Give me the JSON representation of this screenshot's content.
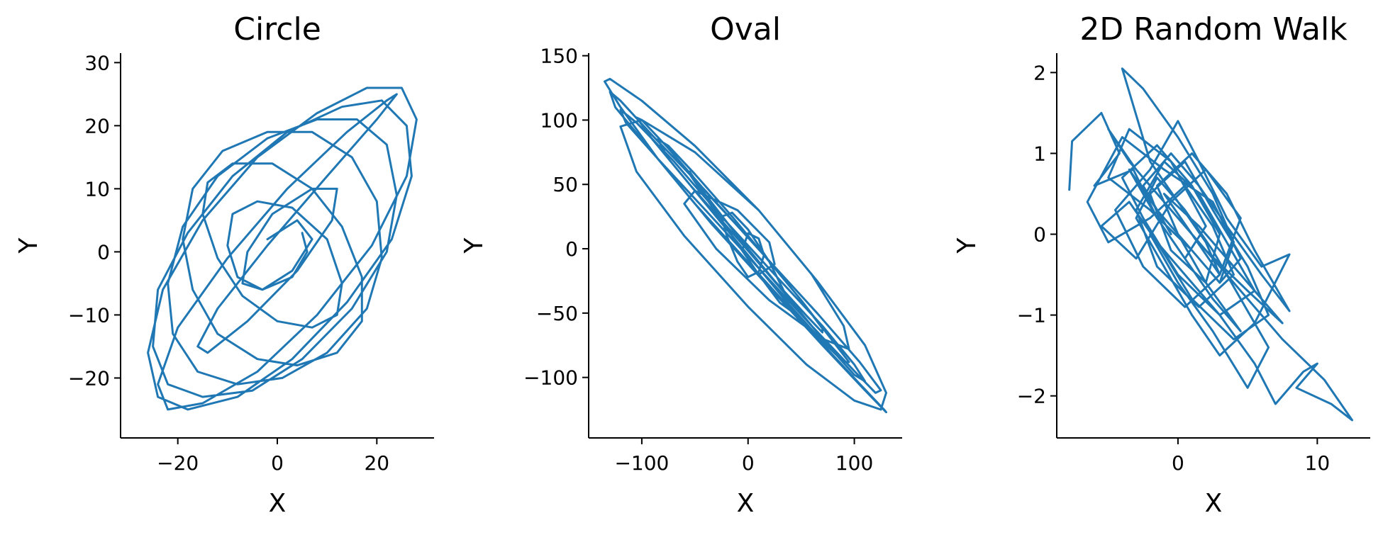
{
  "colors": {
    "series": "#1f77b4",
    "axis": "#000000",
    "background": "#ffffff"
  },
  "chart_data": [
    {
      "type": "line",
      "title": "Circle",
      "xlabel": "X",
      "ylabel": "Y",
      "xlim": [
        -31.5,
        31.5
      ],
      "ylim": [
        -29.5,
        31.5
      ],
      "xticks": [
        -20,
        0,
        20
      ],
      "yticks": [
        -20,
        -10,
        0,
        10,
        20,
        30
      ],
      "grid": false,
      "legend": "none",
      "trajectory": "noisy spiral expanding outward from origin",
      "series": [
        {
          "x": [
            -2,
            4,
            7,
            3,
            -3,
            -8,
            -10,
            -9,
            -4,
            3,
            10,
            13,
            12,
            7,
            0,
            -7,
            -12,
            -15,
            -14,
            -9,
            -1,
            7,
            13,
            17,
            17,
            12,
            4,
            -4,
            -12,
            -17,
            -19,
            -17,
            -11,
            -2,
            7,
            15,
            20,
            21,
            18,
            10,
            1,
            -8,
            -16,
            -21,
            -22,
            -19,
            -12,
            -2,
            8,
            16,
            22,
            24,
            22,
            15,
            5,
            -5,
            -15,
            -22,
            -25,
            -24,
            -18,
            -9,
            2,
            13,
            21,
            26,
            27,
            23,
            14,
            3,
            -8,
            -18,
            -24,
            -26,
            -23,
            -15,
            -4,
            8,
            18,
            25,
            28,
            26,
            19,
            8,
            -4,
            -15,
            -22,
            -24,
            -20,
            -10,
            2,
            14,
            22,
            24,
            20,
            10,
            -2,
            -12,
            -16,
            -14,
            -6,
            4,
            11,
            12,
            7,
            -1,
            -6,
            -7,
            -3,
            3,
            6,
            5
          ],
          "y": [
            2,
            5,
            2,
            -3,
            -6,
            -4,
            1,
            6,
            8,
            7,
            2,
            -5,
            -10,
            -12,
            -11,
            -7,
            -1,
            6,
            11,
            14,
            14,
            10,
            4,
            -4,
            -11,
            -16,
            -18,
            -17,
            -13,
            -6,
            2,
            10,
            16,
            19,
            19,
            15,
            8,
            -1,
            -9,
            -16,
            -20,
            -21,
            -19,
            -13,
            -5,
            4,
            12,
            18,
            21,
            21,
            17,
            9,
            0,
            -9,
            -17,
            -22,
            -23,
            -21,
            -15,
            -6,
            3,
            12,
            19,
            23,
            24,
            20,
            12,
            2,
            -8,
            -17,
            -23,
            -25,
            -23,
            -16,
            -6,
            5,
            15,
            22,
            26,
            26,
            21,
            12,
            1,
            -10,
            -19,
            -24,
            -25,
            -21,
            -12,
            -1,
            10,
            19,
            24,
            25,
            21,
            12,
            1,
            -9,
            -15,
            -16,
            -11,
            -3,
            5,
            10,
            10,
            6,
            0,
            -5,
            -6,
            -4,
            0,
            3
          ]
        }
      ]
    },
    {
      "type": "line",
      "title": "Oval",
      "xlabel": "X",
      "ylabel": "Y",
      "xlim": [
        -150,
        145
      ],
      "ylim": [
        -147,
        152
      ],
      "xticks": [
        -100,
        0,
        100
      ],
      "yticks": [
        -100,
        -50,
        0,
        50,
        100,
        150
      ],
      "grid": false,
      "legend": "none",
      "trajectory": "elliptical spiral tilted along y = -x, expanding from center",
      "series": [
        {
          "x": [
            -5,
            0,
            10,
            15,
            10,
            0,
            -10,
            -20,
            -25,
            -15,
            0,
            20,
            35,
            40,
            30,
            10,
            -15,
            -40,
            -55,
            -55,
            -40,
            -10,
            25,
            55,
            70,
            70,
            50,
            20,
            -15,
            -50,
            -75,
            -85,
            -75,
            -45,
            -5,
            35,
            70,
            90,
            95,
            80,
            50,
            10,
            -35,
            -75,
            -100,
            -105,
            -90,
            -55,
            -10,
            35,
            75,
            100,
            110,
            100,
            70,
            25,
            -25,
            -70,
            -105,
            -120,
            -115,
            -85,
            -40,
            10,
            60,
            100,
            120,
            125,
            105,
            65,
            15,
            -40,
            -90,
            -120,
            -130,
            -125,
            -95,
            -50,
            5,
            60,
            105,
            128,
            130,
            110,
            70,
            20,
            -35,
            -85,
            -120,
            -135,
            -130,
            -100,
            -50,
            10,
            65,
            110,
            130,
            125,
            100,
            55,
            0,
            -60,
            -105,
            -120,
            -100,
            -50,
            10,
            60,
            90,
            95,
            70,
            20,
            -30,
            -60,
            -50,
            -10,
            20,
            25,
            10
          ],
          "y": [
            0,
            12,
            8,
            -5,
            -18,
            -22,
            -10,
            10,
            25,
            28,
            15,
            -10,
            -35,
            -48,
            -42,
            -20,
            10,
            40,
            58,
            60,
            42,
            10,
            -25,
            -52,
            -65,
            -62,
            -40,
            -10,
            25,
            58,
            80,
            85,
            70,
            40,
            0,
            -40,
            -72,
            -88,
            -88,
            -72,
            -40,
            0,
            40,
            78,
            100,
            102,
            85,
            50,
            8,
            -35,
            -75,
            -98,
            -103,
            -90,
            -60,
            -20,
            25,
            68,
            98,
            108,
            98,
            70,
            30,
            -15,
            -60,
            -95,
            -112,
            -110,
            -88,
            -50,
            -5,
            45,
            88,
            115,
            122,
            110,
            80,
            35,
            -15,
            -65,
            -105,
            -125,
            -127,
            -110,
            -75,
            -30,
            20,
            70,
            110,
            130,
            132,
            115,
            80,
            30,
            -25,
            -75,
            -112,
            -125,
            -118,
            -90,
            -45,
            10,
            60,
            95,
            100,
            75,
            30,
            -20,
            -60,
            -78,
            -70,
            -40,
            0,
            35,
            45,
            30,
            5,
            -12,
            -20
          ]
        }
      ]
    },
    {
      "type": "line",
      "title": "2D Random Walk",
      "xlabel": "X",
      "ylabel": "Y",
      "xlim": [
        -8.7,
        13.8
      ],
      "ylim": [
        -2.52,
        2.24
      ],
      "xticks": [
        0,
        10
      ],
      "yticks": [
        -2,
        -1,
        0,
        1,
        2
      ],
      "grid": false,
      "legend": "none",
      "trajectory": "dense noisy walk clustered around origin along a negative-slope band",
      "series": [
        {
          "x": [
            -7.8,
            -7.6,
            -5.5,
            -4.2,
            -6.0,
            -3.2,
            -1.5,
            0.5,
            2.0,
            -0.5,
            -3.5,
            -5.0,
            -2.0,
            1.0,
            3.0,
            4.5,
            2.5,
            -1.0,
            -4.0,
            -6.5,
            -5.0,
            -2.0,
            0.5,
            2.5,
            4.0,
            1.5,
            -1.5,
            -3.0,
            -1.0,
            1.5,
            3.5,
            5.5,
            3.0,
            0.0,
            -2.5,
            -4.0,
            -1.5,
            1.0,
            3.0,
            2.0,
            -0.5,
            -2.0,
            0.5,
            2.5,
            5.0,
            6.5,
            4.0,
            1.0,
            -1.5,
            -3.5,
            -5.5,
            -3.0,
            -0.5,
            2.0,
            4.5,
            3.0,
            0.5,
            -2.5,
            -4.5,
            -2.0,
            0.0,
            1.5,
            3.5,
            6.0,
            8.0,
            5.5,
            3.0,
            1.0,
            -1.0,
            -3.0,
            -1.5,
            0.5,
            2.5,
            4.5,
            6.5,
            5.0,
            2.5,
            0.0,
            -2.0,
            0.5,
            3.0,
            5.5,
            7.0,
            9.0,
            10.0,
            8.5,
            11.0,
            12.5,
            10.5,
            7.5,
            5.0,
            3.5,
            1.0,
            -1.0,
            1.5,
            4.0,
            6.5,
            7.5,
            5.0,
            2.0,
            -0.5,
            -3.0,
            -5.0,
            -3.5,
            -1.0,
            1.0,
            3.0,
            2.0,
            0.0,
            -2.0,
            -4.0,
            -2.5,
            0.0,
            2.5,
            4.0,
            3.0,
            1.0,
            -1.5,
            -3.5,
            -1.5,
            0.5,
            2.5,
            4.5,
            2.0,
            0.0,
            -1.5,
            1.0,
            3.5,
            5.5,
            8.0,
            6.0,
            3.5,
            1.5,
            -0.5,
            -2.5,
            -0.5
          ],
          "y": [
            0.55,
            1.15,
            1.5,
            1.0,
            0.6,
            0.8,
            0.2,
            -0.3,
            0.1,
            0.9,
            1.3,
            0.7,
            0.3,
            -0.2,
            -0.6,
            -0.3,
            0.4,
            0.8,
            1.2,
            0.4,
            -0.1,
            0.2,
            0.6,
            0.1,
            -0.5,
            -0.9,
            -0.4,
            0.3,
            0.9,
            0.5,
            -0.1,
            -0.7,
            -1.0,
            -0.5,
            0.2,
            0.7,
            1.1,
            0.6,
            0.0,
            -0.6,
            -0.2,
            0.5,
            0.9,
            0.3,
            -0.4,
            -1.0,
            -1.3,
            -0.8,
            -0.1,
            0.4,
            0.1,
            -0.3,
            0.4,
            0.8,
            0.2,
            -0.5,
            -0.9,
            -0.4,
            0.3,
            0.8,
            1.4,
            0.9,
            0.2,
            -0.4,
            -0.25,
            -1.1,
            -1.5,
            -1.0,
            -0.4,
            0.2,
            0.7,
            0.3,
            -0.2,
            -0.8,
            -1.4,
            -1.9,
            -1.2,
            -0.6,
            0.0,
            -0.5,
            -1.0,
            -1.6,
            -2.1,
            -1.7,
            -1.6,
            -1.9,
            -2.1,
            -2.3,
            -1.8,
            -1.3,
            -0.8,
            -0.5,
            0.0,
            0.5,
            0.1,
            -0.4,
            -0.9,
            -1.1,
            -0.7,
            -0.2,
            0.3,
            0.8,
            1.3,
            0.9,
            0.4,
            0.0,
            -0.5,
            -0.1,
            0.4,
            0.9,
            2.05,
            1.8,
            1.2,
            0.5,
            -0.1,
            -0.6,
            -0.2,
            0.3,
            0.8,
            0.2,
            -0.3,
            -0.8,
            -1.2,
            -0.6,
            0.0,
            0.6,
            1.0,
            0.5,
            -0.2,
            -0.95,
            -0.5,
            0.1,
            0.6,
            1.0,
            0.6,
            0.0
          ]
        }
      ]
    }
  ]
}
